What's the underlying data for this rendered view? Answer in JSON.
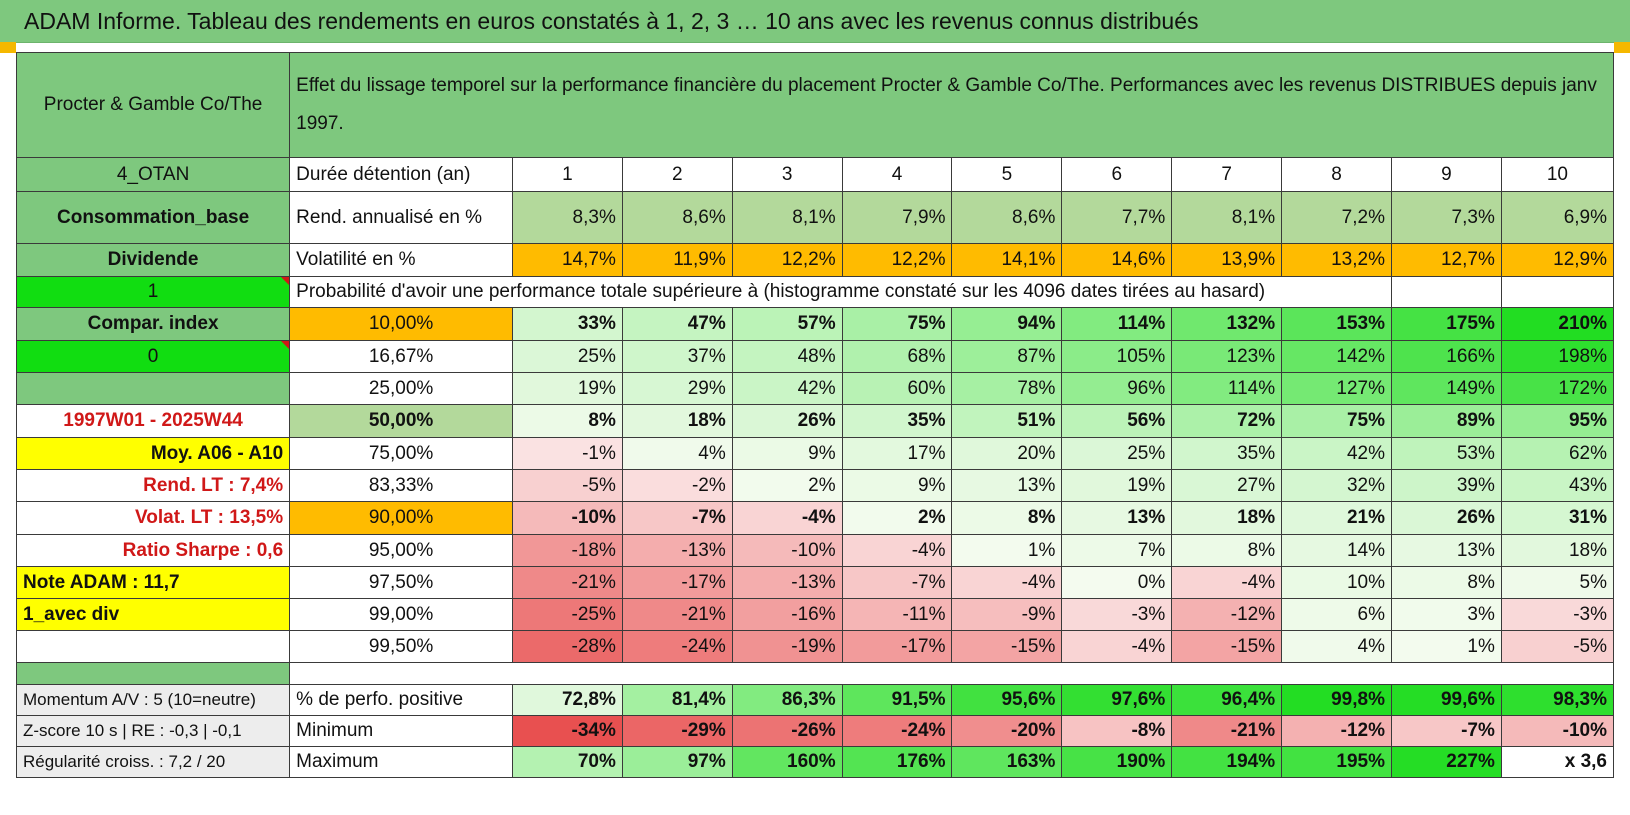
{
  "banner": {
    "title": "ADAM Informe. Tableau des rendements en euros constatés à 1, 2, 3 … 10 ans avec les revenus connus distribués"
  },
  "header": {
    "name": "Procter & Gamble Co/The",
    "description": "Effet du lissage temporel sur la performance financière du placement Procter & Gamble Co/The. Performances avec les revenus DISTRIBUES depuis janv 1997."
  },
  "side_labels": [
    "4_OTAN",
    "Consommation_base",
    "Dividende",
    "1",
    "Compar. index",
    "0",
    "",
    "1997W01 - 2025W44",
    "Moy. A06 - A10",
    "Rend. LT :   7,4%",
    "Volat. LT :   13,5%",
    "Ratio Sharpe :    0,6",
    "Note ADAM : 11,7",
    "1_avec div",
    ""
  ],
  "durations": {
    "label": "Durée détention (an)",
    "values": [
      "1",
      "2",
      "3",
      "4",
      "5",
      "6",
      "7",
      "8",
      "9",
      "10"
    ]
  },
  "rendement": {
    "label": "Rend. annualisé en %",
    "values": [
      "8,3%",
      "8,6%",
      "8,1%",
      "7,9%",
      "8,6%",
      "7,7%",
      "8,1%",
      "7,2%",
      "7,3%",
      "6,9%"
    ]
  },
  "volatility": {
    "label": "Volatilité en %",
    "values": [
      "14,7%",
      "11,9%",
      "12,2%",
      "12,2%",
      "14,1%",
      "14,6%",
      "13,9%",
      "13,2%",
      "12,7%",
      "12,9%"
    ]
  },
  "probability_caption": "Probabilité d'avoir une performance totale supérieure à (histogramme constaté sur les 4096 dates tirées au hasard)",
  "quantile_rows": [
    {
      "pct": "10,00%",
      "values": [
        "33%",
        "47%",
        "57%",
        "75%",
        "94%",
        "114%",
        "132%",
        "153%",
        "175%",
        "210%"
      ]
    },
    {
      "pct": "16,67%",
      "values": [
        "25%",
        "37%",
        "48%",
        "68%",
        "87%",
        "105%",
        "123%",
        "142%",
        "166%",
        "198%"
      ]
    },
    {
      "pct": "25,00%",
      "values": [
        "19%",
        "29%",
        "42%",
        "60%",
        "78%",
        "96%",
        "114%",
        "127%",
        "149%",
        "172%"
      ]
    },
    {
      "pct": "50,00%",
      "values": [
        "8%",
        "18%",
        "26%",
        "35%",
        "51%",
        "56%",
        "72%",
        "75%",
        "89%",
        "95%"
      ]
    },
    {
      "pct": "75,00%",
      "values": [
        "-1%",
        "4%",
        "9%",
        "17%",
        "20%",
        "25%",
        "35%",
        "42%",
        "53%",
        "62%"
      ]
    },
    {
      "pct": "83,33%",
      "values": [
        "-5%",
        "-2%",
        "2%",
        "9%",
        "13%",
        "19%",
        "27%",
        "32%",
        "39%",
        "43%"
      ]
    },
    {
      "pct": "90,00%",
      "values": [
        "-10%",
        "-7%",
        "-4%",
        "2%",
        "8%",
        "13%",
        "18%",
        "21%",
        "26%",
        "31%"
      ]
    },
    {
      "pct": "95,00%",
      "values": [
        "-18%",
        "-13%",
        "-10%",
        "-4%",
        "1%",
        "7%",
        "8%",
        "14%",
        "13%",
        "18%"
      ]
    },
    {
      "pct": "97,50%",
      "values": [
        "-21%",
        "-17%",
        "-13%",
        "-7%",
        "-4%",
        "0%",
        "-4%",
        "10%",
        "8%",
        "5%"
      ]
    },
    {
      "pct": "99,00%",
      "values": [
        "-25%",
        "-21%",
        "-16%",
        "-11%",
        "-9%",
        "-3%",
        "-12%",
        "6%",
        "3%",
        "-3%"
      ]
    },
    {
      "pct": "99,50%",
      "values": [
        "-28%",
        "-24%",
        "-19%",
        "-17%",
        "-15%",
        "-4%",
        "-15%",
        "4%",
        "1%",
        "-5%"
      ]
    }
  ],
  "summary_rows": [
    {
      "side": "Momentum A/V : 5 (10=neutre)",
      "label": "% de perfo. positive",
      "values": [
        "72,8%",
        "81,4%",
        "86,3%",
        "91,5%",
        "95,6%",
        "97,6%",
        "96,4%",
        "99,8%",
        "99,6%",
        "98,3%"
      ]
    },
    {
      "side": "Z-score 10 s | RE : -0,3 | -0,1",
      "label": "Minimum",
      "values": [
        "-34%",
        "-29%",
        "-26%",
        "-24%",
        "-20%",
        "-8%",
        "-21%",
        "-12%",
        "-7%",
        "-10%"
      ]
    },
    {
      "side": "Régularité croiss. : 7,2 / 20",
      "label": "Maximum",
      "values": [
        "70%",
        "97%",
        "160%",
        "176%",
        "163%",
        "190%",
        "194%",
        "195%",
        "227%",
        "x 3,6"
      ]
    }
  ],
  "colors": {
    "header_green": "#7ec87e",
    "bright_green": "#11dd11",
    "yellow": "#ffff00",
    "orange": "#ffbb00",
    "positive_green": "#22dd22",
    "negative_red": "#e85050",
    "label_red": "#d01818"
  }
}
